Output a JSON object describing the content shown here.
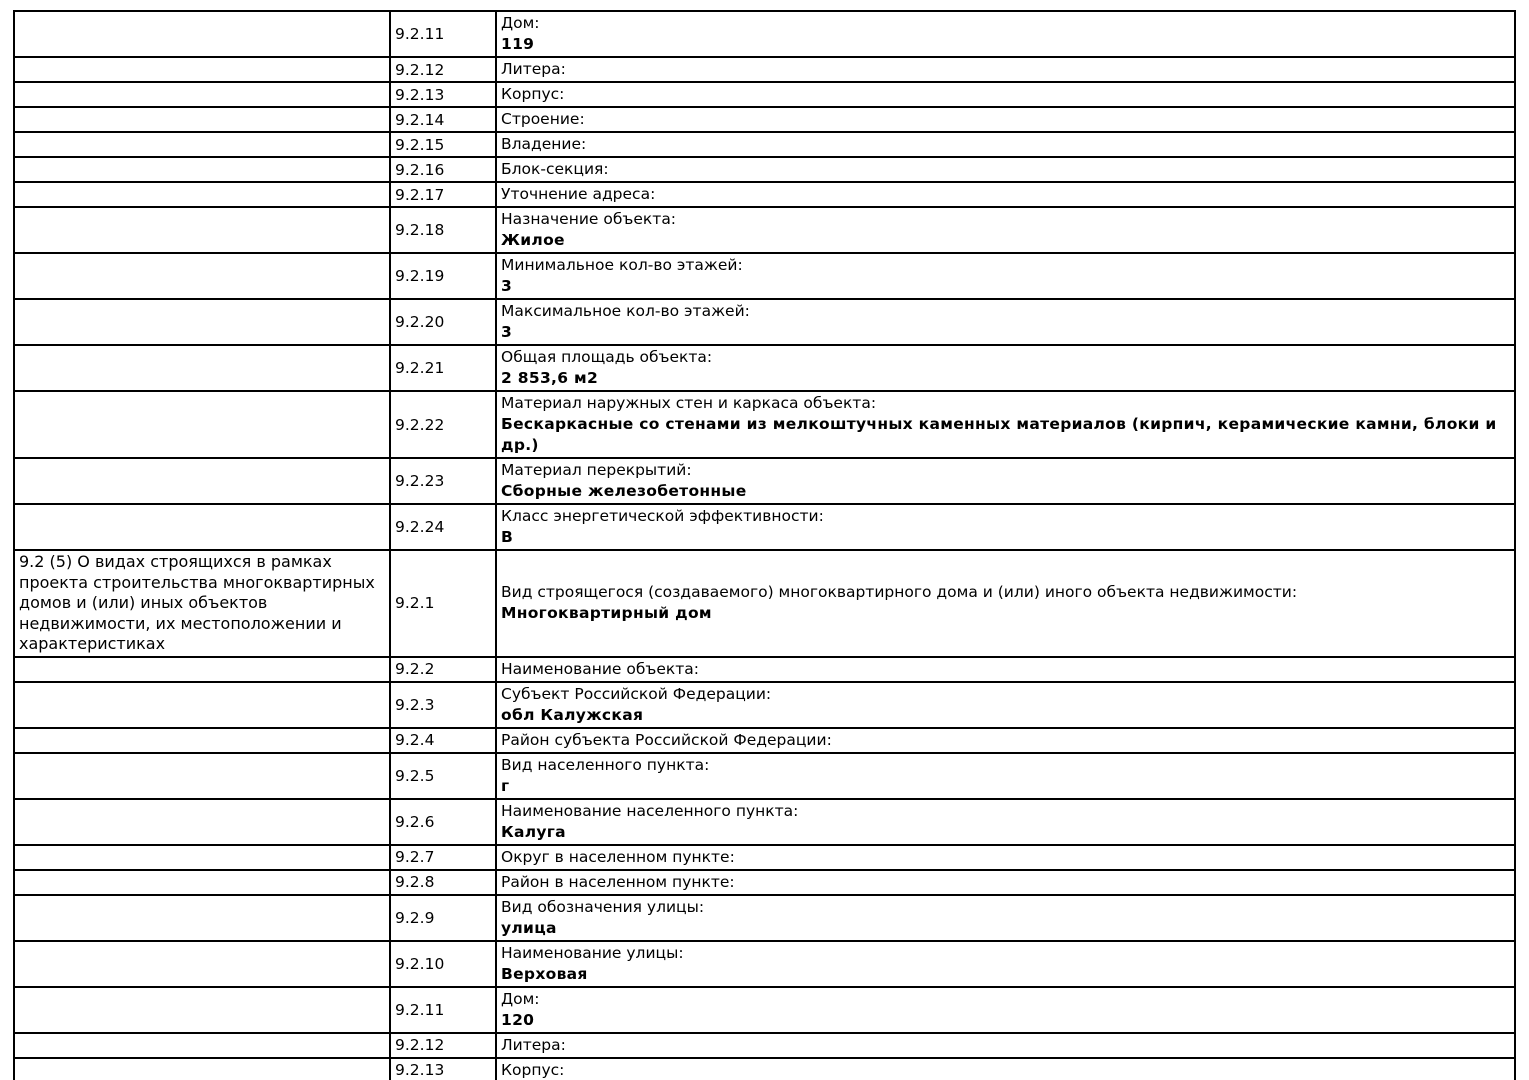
{
  "document": {
    "background_color": "#ffffff",
    "border_color": "#000000",
    "text_color": "#000000"
  },
  "table": {
    "columns": [
      "section",
      "code",
      "field"
    ],
    "rows": [
      {
        "code": "9.2.11",
        "label": "Дом:",
        "value": "119"
      },
      {
        "code": "9.2.12",
        "label": "Литера:"
      },
      {
        "code": "9.2.13",
        "label": "Корпус:"
      },
      {
        "code": "9.2.14",
        "label": "Строение:"
      },
      {
        "code": "9.2.15",
        "label": "Владение:"
      },
      {
        "code": "9.2.16",
        "label": "Блок-секция:"
      },
      {
        "code": "9.2.17",
        "label": "Уточнение адреса:"
      },
      {
        "code": "9.2.18",
        "label": "Назначение объекта:",
        "value": "Жилое"
      },
      {
        "code": "9.2.19",
        "label": "Минимальное кол-во этажей:",
        "value": "3"
      },
      {
        "code": "9.2.20",
        "label": "Максимальное кол-во этажей:",
        "value": "3"
      },
      {
        "code": "9.2.21",
        "label": "Общая площадь объекта:",
        "value": "2 853,6 м2"
      },
      {
        "code": "9.2.22",
        "label": "Материал наружных стен и каркаса объекта:",
        "value": "Бескаркасные со стенами из мелкоштучных каменных материалов (кирпич, керамические камни, блоки и др.)"
      },
      {
        "code": "9.2.23",
        "label": "Материал перекрытий:",
        "value": "Сборные железобетонные"
      },
      {
        "code": "9.2.24",
        "label": "Класс энергетической эффективности:",
        "value": "В"
      },
      {
        "section": "9.2 (5) О видах строящихся в рамках проекта строительства многоквартирных домов и (или) иных объектов недвижимости, их местоположении и характеристиках",
        "code": "9.2.1",
        "label": "Вид строящегося (создаваемого) многоквартирного дома и (или) иного объекта недвижимости:",
        "value": "Многоквартирный дом"
      },
      {
        "code": "9.2.2",
        "label": "Наименование объекта:"
      },
      {
        "code": "9.2.3",
        "label": "Субъект Российской Федерации:",
        "value": "обл Калужская"
      },
      {
        "code": "9.2.4",
        "label": "Район субъекта Российской Федерации:"
      },
      {
        "code": "9.2.5",
        "label": "Вид населенного пункта:",
        "value": "г"
      },
      {
        "code": "9.2.6",
        "label": "Наименование населенного пункта:",
        "value": "Калуга"
      },
      {
        "code": "9.2.7",
        "label": "Округ в населенном пункте:"
      },
      {
        "code": "9.2.8",
        "label": "Район в населенном пункте:"
      },
      {
        "code": "9.2.9",
        "label": "Вид обозначения улицы:",
        "value": "улица"
      },
      {
        "code": "9.2.10",
        "label": "Наименование улицы:",
        "value": "Верховая"
      },
      {
        "code": "9.2.11",
        "label": "Дом:",
        "value": "120"
      },
      {
        "code": "9.2.12",
        "label": "Литера:"
      },
      {
        "code": "9.2.13",
        "label": "Корпус:"
      }
    ]
  }
}
